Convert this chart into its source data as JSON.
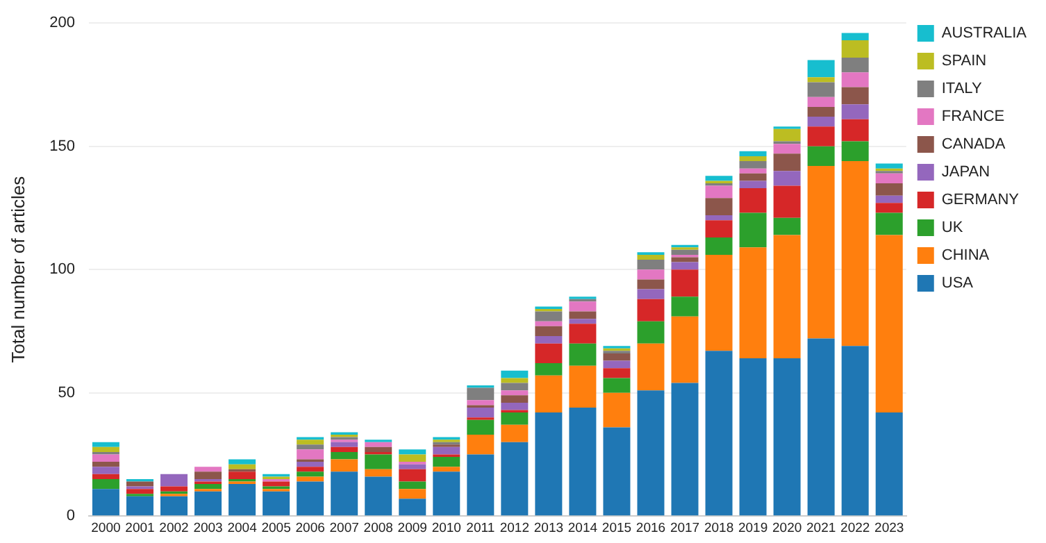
{
  "chart_data": {
    "type": "bar",
    "stacked": true,
    "ylabel": "Total number of articles",
    "categories": [
      "2000",
      "2001",
      "2002",
      "2003",
      "2004",
      "2005",
      "2006",
      "2007",
      "2008",
      "2009",
      "2010",
      "2011",
      "2012",
      "2013",
      "2014",
      "2015",
      "2016",
      "2017",
      "2018",
      "2019",
      "2020",
      "2021",
      "2022",
      "2023"
    ],
    "series": [
      {
        "name": "USA",
        "color": "#1f77b4",
        "values": [
          11,
          8,
          8,
          10,
          13,
          10,
          14,
          18,
          16,
          7,
          18,
          25,
          30,
          42,
          44,
          36,
          51,
          54,
          67,
          64,
          64,
          72,
          69,
          42
        ]
      },
      {
        "name": "CHINA",
        "color": "#ff7f0e",
        "values": [
          0,
          0,
          1,
          1,
          1,
          1,
          2,
          5,
          3,
          4,
          2,
          8,
          7,
          15,
          17,
          14,
          19,
          27,
          39,
          45,
          50,
          70,
          75,
          72
        ]
      },
      {
        "name": "UK",
        "color": "#2ca02c",
        "values": [
          4,
          1,
          1,
          2,
          1,
          1,
          2,
          3,
          6,
          3,
          4,
          6,
          5,
          5,
          9,
          6,
          9,
          8,
          7,
          14,
          7,
          8,
          8,
          9
        ]
      },
      {
        "name": "GERMANY",
        "color": "#d62728",
        "values": [
          2,
          2,
          2,
          1,
          3,
          2,
          2,
          2,
          1,
          5,
          1,
          1,
          1,
          8,
          8,
          4,
          9,
          11,
          7,
          10,
          13,
          8,
          9,
          4
        ]
      },
      {
        "name": "JAPAN",
        "color": "#9467bd",
        "values": [
          3,
          1,
          5,
          1,
          0,
          0,
          2,
          2,
          0,
          2,
          3,
          4,
          3,
          3,
          2,
          3,
          4,
          3,
          2,
          3,
          6,
          4,
          6,
          3
        ]
      },
      {
        "name": "CANADA",
        "color": "#8c564b",
        "values": [
          2,
          2,
          0,
          3,
          1,
          0,
          1,
          0,
          2,
          0,
          1,
          1,
          3,
          4,
          3,
          3,
          4,
          2,
          7,
          3,
          7,
          4,
          7,
          5
        ]
      },
      {
        "name": "FRANCE",
        "color": "#e377c2",
        "values": [
          3,
          0,
          0,
          2,
          0,
          1,
          4,
          1,
          2,
          1,
          0,
          2,
          2,
          2,
          4,
          0,
          4,
          1,
          5,
          2,
          4,
          4,
          6,
          4
        ]
      },
      {
        "name": "ITALY",
        "color": "#7f7f7f",
        "values": [
          1,
          0,
          0,
          0,
          0,
          0,
          2,
          1,
          0,
          0,
          1,
          5,
          3,
          4,
          1,
          1,
          4,
          2,
          1,
          3,
          1,
          6,
          6,
          1
        ]
      },
      {
        "name": "SPAIN",
        "color": "#bcbd22",
        "values": [
          2,
          0,
          0,
          0,
          2,
          1,
          2,
          1,
          0,
          3,
          1,
          0,
          2,
          1,
          0,
          1,
          2,
          1,
          1,
          2,
          5,
          2,
          7,
          1
        ]
      },
      {
        "name": "AUSTRALIA",
        "color": "#17becf",
        "values": [
          2,
          1,
          0,
          0,
          2,
          1,
          1,
          1,
          1,
          2,
          1,
          1,
          3,
          1,
          1,
          1,
          1,
          1,
          2,
          2,
          1,
          7,
          3,
          2
        ]
      }
    ],
    "ylim": [
      0,
      200
    ],
    "yticks": [
      0,
      50,
      100,
      150,
      200
    ],
    "grid": "y",
    "legend": "top right"
  }
}
